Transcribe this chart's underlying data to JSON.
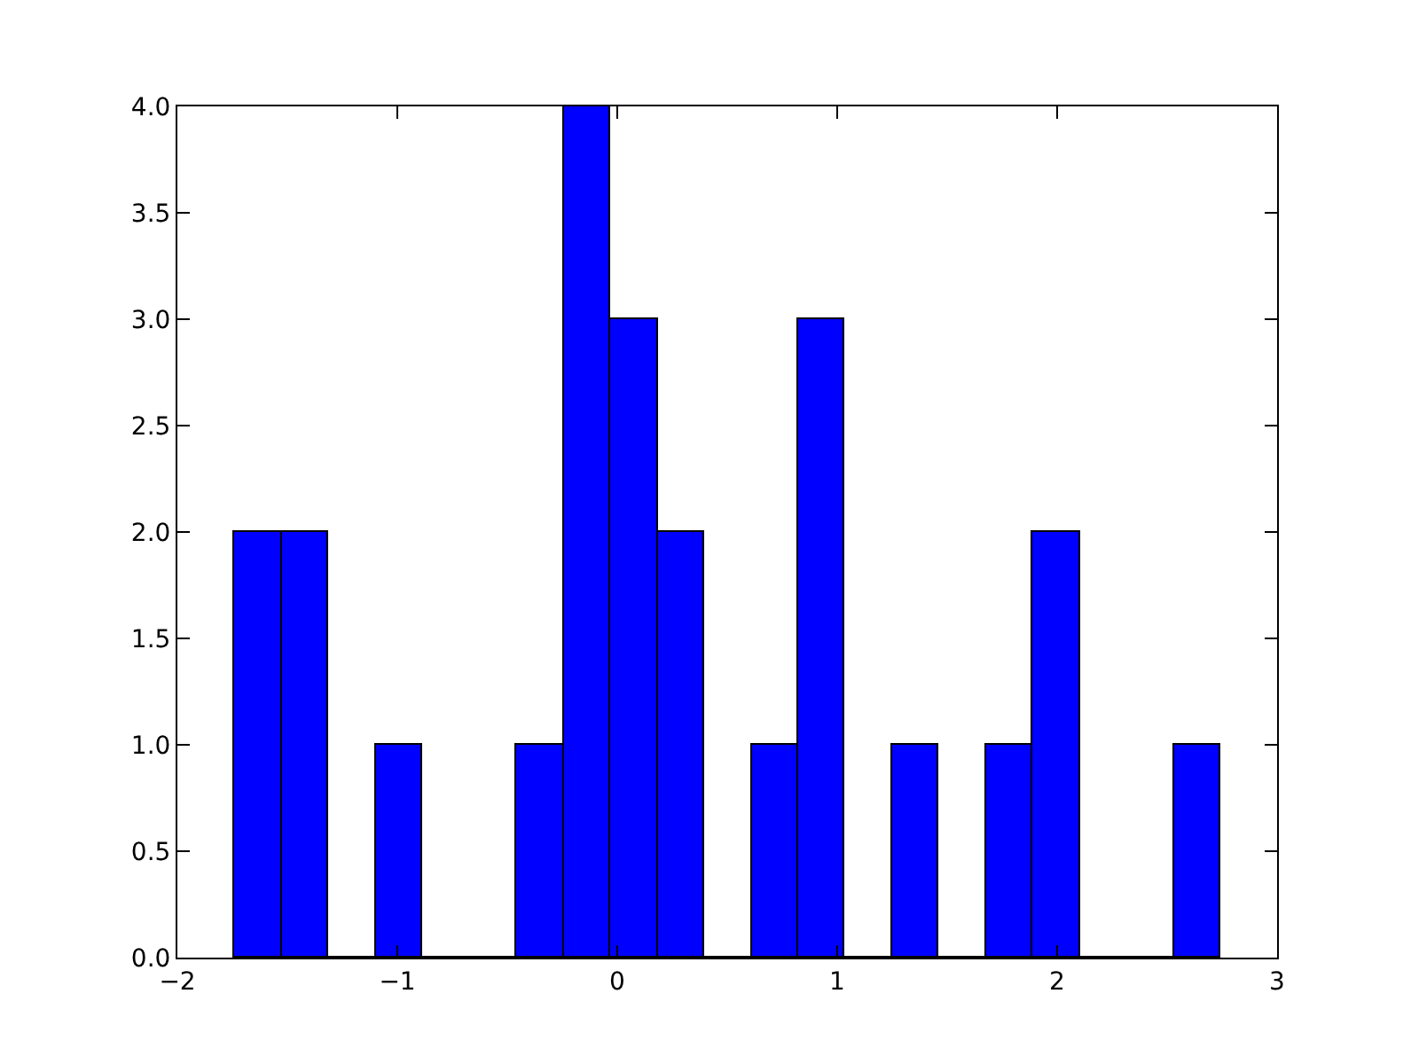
{
  "chart_data": {
    "type": "histogram",
    "bins": [
      -1.738,
      -1.525,
      -1.311,
      -1.098,
      -0.885,
      -0.671,
      -0.458,
      -0.245,
      -0.031,
      0.182,
      0.395,
      0.609,
      0.822,
      1.035,
      1.249,
      1.462,
      1.675,
      1.889,
      2.102,
      2.315,
      2.529,
      2.742
    ],
    "values": [
      2,
      2,
      0,
      1,
      0,
      0,
      1,
      4,
      3,
      2,
      0,
      1,
      3,
      0,
      1,
      0,
      1,
      2,
      0,
      0,
      1
    ],
    "color": "#0000ff",
    "xlim": [
      -2,
      3
    ],
    "xticks": [
      {
        "value": -2,
        "label": "−2"
      },
      {
        "value": -1,
        "label": "−1"
      },
      0,
      1,
      2,
      3
    ],
    "ylim": [
      0,
      4
    ],
    "yticks": [
      {
        "value": 0,
        "label": "0.0"
      },
      {
        "value": 0.5,
        "label": "0.5"
      },
      {
        "value": 1,
        "label": "1.0"
      },
      {
        "value": 1.5,
        "label": "1.5"
      },
      {
        "value": 2,
        "label": "2.0"
      },
      {
        "value": 2.5,
        "label": "2.5"
      },
      {
        "value": 3,
        "label": "3.0"
      },
      {
        "value": 3.5,
        "label": "3.5"
      },
      {
        "value": 4,
        "label": "4.0"
      }
    ],
    "grid": false,
    "legend": false
  }
}
